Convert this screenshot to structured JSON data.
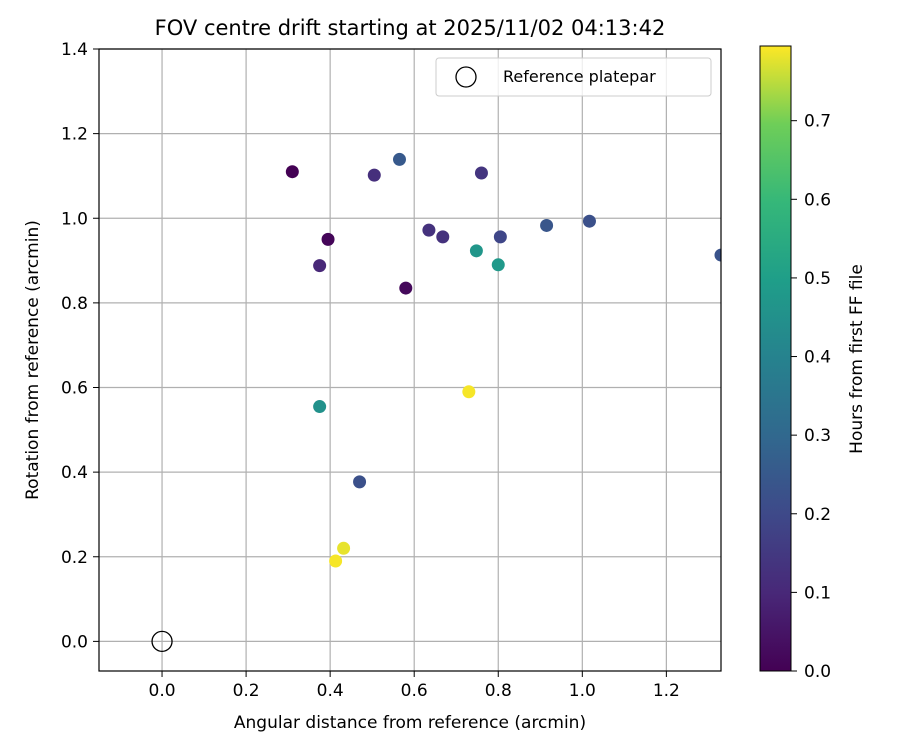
{
  "chart_data": {
    "type": "scatter",
    "title": "FOV centre drift starting at 2025/11/02 04:13:42",
    "xlabel": "Angular distance from reference (arcmin)",
    "ylabel": "Rotation from reference (arcmin)",
    "xlim": [
      -0.15,
      1.33
    ],
    "ylim": [
      -0.07,
      1.4
    ],
    "xticks": [
      0.0,
      0.2,
      0.4,
      0.6,
      0.8,
      1.0,
      1.2
    ],
    "xtick_labels": [
      "0.0",
      "0.2",
      "0.4",
      "0.6",
      "0.8",
      "1.0",
      "1.2"
    ],
    "yticks": [
      0.0,
      0.2,
      0.4,
      0.6,
      0.8,
      1.0,
      1.2,
      1.4
    ],
    "ytick_labels": [
      "0.0",
      "0.2",
      "0.4",
      "0.6",
      "0.8",
      "1.0",
      "1.2",
      "1.4"
    ],
    "grid": true,
    "legend": {
      "placement": "top-right",
      "entries": [
        "Reference platepar"
      ]
    },
    "reference_point": {
      "x": 0.0,
      "y": 0.0,
      "label": "Reference platepar"
    },
    "colorbar": {
      "label": "Hours from first FF file",
      "range": [
        0.0,
        0.795
      ],
      "ticks": [
        0.0,
        0.1,
        0.2,
        0.3,
        0.4,
        0.5,
        0.6,
        0.7
      ],
      "tick_labels": [
        "0.0",
        "0.1",
        "0.2",
        "0.3",
        "0.4",
        "0.5",
        "0.6",
        "0.7"
      ],
      "colormap": "viridis"
    },
    "points": [
      {
        "x": 0.31,
        "y": 1.11,
        "hours": 0.0
      },
      {
        "x": 0.395,
        "y": 0.95,
        "hours": 0.01
      },
      {
        "x": 0.58,
        "y": 0.835,
        "hours": 0.02
      },
      {
        "x": 0.375,
        "y": 0.888,
        "hours": 0.1
      },
      {
        "x": 0.505,
        "y": 1.102,
        "hours": 0.12
      },
      {
        "x": 0.635,
        "y": 0.972,
        "hours": 0.13
      },
      {
        "x": 0.668,
        "y": 0.956,
        "hours": 0.13
      },
      {
        "x": 0.76,
        "y": 1.107,
        "hours": 0.14
      },
      {
        "x": 0.805,
        "y": 0.956,
        "hours": 0.19
      },
      {
        "x": 0.47,
        "y": 0.377,
        "hours": 0.22
      },
      {
        "x": 1.017,
        "y": 0.993,
        "hours": 0.22
      },
      {
        "x": 0.915,
        "y": 0.983,
        "hours": 0.24
      },
      {
        "x": 0.565,
        "y": 1.139,
        "hours": 0.25
      },
      {
        "x": 1.33,
        "y": 0.913,
        "hours": 0.23
      },
      {
        "x": 0.375,
        "y": 0.555,
        "hours": 0.45
      },
      {
        "x": 0.748,
        "y": 0.923,
        "hours": 0.47
      },
      {
        "x": 0.8,
        "y": 0.89,
        "hours": 0.48
      },
      {
        "x": 0.73,
        "y": 0.59,
        "hours": 0.79
      },
      {
        "x": 0.432,
        "y": 0.22,
        "hours": 0.78
      },
      {
        "x": 0.413,
        "y": 0.19,
        "hours": 0.79
      }
    ]
  }
}
